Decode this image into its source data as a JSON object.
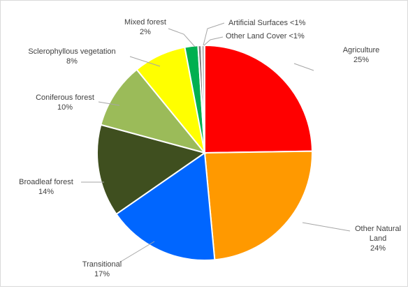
{
  "chart_data": {
    "type": "pie",
    "title": "",
    "slices": [
      {
        "name": "Agriculture",
        "label_lines": [
          "Agriculture"
        ],
        "value": 25,
        "value_label": "25%",
        "color": "#ff0000"
      },
      {
        "name": "Other Natural Land",
        "label_lines": [
          "Other Natural",
          "Land"
        ],
        "value": 24,
        "value_label": "24%",
        "color": "#ff9900"
      },
      {
        "name": "Transitional",
        "label_lines": [
          "Transitional"
        ],
        "value": 17,
        "value_label": "17%",
        "color": "#0066ff"
      },
      {
        "name": "Broadleaf forest",
        "label_lines": [
          "Broadleaf forest"
        ],
        "value": 14,
        "value_label": "14%",
        "color": "#3f4f1f"
      },
      {
        "name": "Coniferous forest",
        "label_lines": [
          "Coniferous forest"
        ],
        "value": 10,
        "value_label": "10%",
        "color": "#9bbb59"
      },
      {
        "name": "Sclerophyllous vegetation",
        "label_lines": [
          "Sclerophyllous vegetation"
        ],
        "value": 8,
        "value_label": "8%",
        "color": "#ffff00"
      },
      {
        "name": "Mixed forest",
        "label_lines": [
          "Mixed forest"
        ],
        "value": 2,
        "value_label": "2%",
        "color": "#00b050"
      },
      {
        "name": "Artificial Surfaces",
        "label_lines": [
          "Artificial Surfaces <1%"
        ],
        "value": 0.5,
        "value_label": "",
        "color": "#7f7f7f"
      },
      {
        "name": "Other Land Cover",
        "label_lines": [
          "Other Land Cover <1%"
        ],
        "value": 0.5,
        "value_label": "",
        "color": "#c0c0c0"
      }
    ],
    "legend": "none",
    "label_position": "outside-with-leader-lines"
  }
}
